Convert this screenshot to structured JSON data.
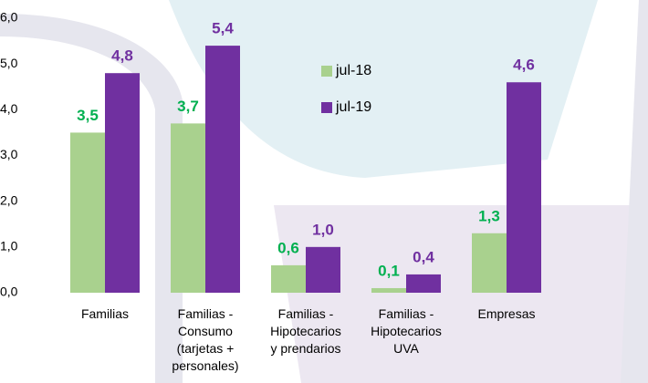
{
  "chart_data": {
    "type": "bar",
    "categories": [
      "Familias",
      "Familias -\nConsumo\n(tarjetas +\npersonales)",
      "Familias -\nHipotecarios\ny prendarios",
      "Familias -\nHipotecarios\nUVA",
      "Empresas"
    ],
    "series": [
      {
        "name": "jul-18",
        "color": "#a9d18e",
        "label_color": "#00b050",
        "values": [
          3.5,
          3.7,
          0.6,
          0.1,
          1.3
        ],
        "value_labels": [
          "3,5",
          "3,7",
          "0,6",
          "0,1",
          "1,3"
        ]
      },
      {
        "name": "jul-19",
        "color": "#7030a0",
        "label_color": "#7030a0",
        "values": [
          4.8,
          5.4,
          1.0,
          0.4,
          4.6
        ],
        "value_labels": [
          "4,8",
          "5,4",
          "1,0",
          "0,4",
          "4,6"
        ]
      }
    ],
    "ylim": [
      0,
      6
    ],
    "yticks": [
      {
        "value": 0,
        "label": "0,0"
      },
      {
        "value": 1,
        "label": "1,0"
      },
      {
        "value": 2,
        "label": "2,0"
      },
      {
        "value": 3,
        "label": "3,0"
      },
      {
        "value": 4,
        "label": "4,0"
      },
      {
        "value": 5,
        "label": "5,0"
      },
      {
        "value": 6,
        "label": "6,0"
      }
    ],
    "grid": false
  }
}
